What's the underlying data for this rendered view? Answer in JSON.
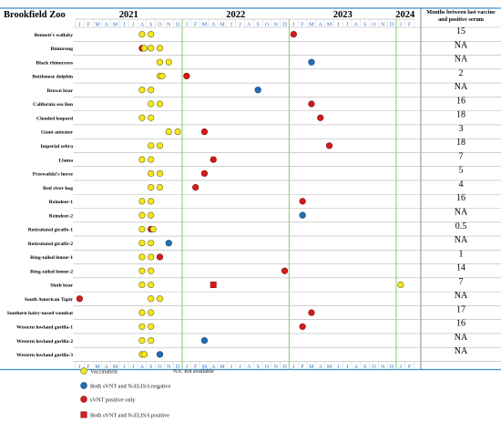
{
  "title": "Brookfield Zoo",
  "right_header": [
    "Months between last vaccine",
    "and positive serum"
  ],
  "na_note": "NA: not available",
  "years": [
    "2021",
    "2022",
    "2023",
    "2024"
  ],
  "month_letters": [
    "J",
    "F",
    "M",
    "A",
    "M",
    "J",
    "J",
    "A",
    "S",
    "O",
    "N",
    "D"
  ],
  "legend": [
    {
      "marker": "vaccination",
      "label": "Vaccination"
    },
    {
      "marker": "both_negative",
      "label": "Both sVNT and N-ELISA negative"
    },
    {
      "marker": "svnt_positive",
      "label": "sVNT positive only"
    },
    {
      "marker": "both_positive",
      "label": "Both sVNT and N-ELISA positive"
    }
  ],
  "colors": {
    "vaccination": "#f5e61e",
    "both_negative": "#1f6fb4",
    "svnt_positive": "#d7191c",
    "both_positive": "#d7191c",
    "frame": "#3b8fd0",
    "year_line": "#8fd17c"
  },
  "chart_data": {
    "type": "timeline",
    "title": "Brookfield Zoo",
    "x_range": [
      "2021-01",
      "2024-02"
    ],
    "rows": [
      {
        "animal": "Bennett's wallaby",
        "months_value": "15",
        "events": [
          {
            "t": "2021-08",
            "k": "vaccination"
          },
          {
            "t": "2021-09",
            "k": "vaccination"
          },
          {
            "t": "2023-01",
            "k": "svnt_positive"
          }
        ]
      },
      {
        "animal": "Binturong",
        "months_value": "NA",
        "events": [
          {
            "t": "2021-08",
            "k": "svnt_positive"
          },
          {
            "t": "2021-08",
            "k": "vaccination"
          },
          {
            "t": "2021-09",
            "k": "vaccination"
          },
          {
            "t": "2021-10",
            "k": "vaccination"
          }
        ]
      },
      {
        "animal": "Black rhinoceros",
        "months_value": "NA",
        "events": [
          {
            "t": "2021-10",
            "k": "vaccination"
          },
          {
            "t": "2021-11",
            "k": "vaccination"
          },
          {
            "t": "2023-03",
            "k": "both_negative"
          }
        ]
      },
      {
        "animal": "Bottlenose dolphin",
        "months_value": "2",
        "events": [
          {
            "t": "2021-10",
            "k": "vaccination"
          },
          {
            "t": "2021-10",
            "k": "vaccination"
          },
          {
            "t": "2022-01",
            "k": "svnt_positive"
          }
        ]
      },
      {
        "animal": "Brown bear",
        "months_value": "NA",
        "events": [
          {
            "t": "2021-08",
            "k": "vaccination"
          },
          {
            "t": "2021-09",
            "k": "vaccination"
          },
          {
            "t": "2022-09",
            "k": "both_negative"
          }
        ]
      },
      {
        "animal": "California sea lion",
        "months_value": "16",
        "events": [
          {
            "t": "2021-09",
            "k": "vaccination"
          },
          {
            "t": "2021-10",
            "k": "vaccination"
          },
          {
            "t": "2023-03",
            "k": "svnt_positive"
          }
        ]
      },
      {
        "animal": "Clouded leopard",
        "months_value": "18",
        "events": [
          {
            "t": "2021-08",
            "k": "vaccination"
          },
          {
            "t": "2021-09",
            "k": "vaccination"
          },
          {
            "t": "2023-04",
            "k": "svnt_positive"
          }
        ]
      },
      {
        "animal": "Giant anteater",
        "months_value": "3",
        "events": [
          {
            "t": "2021-11",
            "k": "vaccination"
          },
          {
            "t": "2021-12",
            "k": "vaccination"
          },
          {
            "t": "2022-03",
            "k": "svnt_positive"
          }
        ]
      },
      {
        "animal": "Imperial zebra",
        "months_value": "18",
        "events": [
          {
            "t": "2021-09",
            "k": "vaccination"
          },
          {
            "t": "2021-10",
            "k": "vaccination"
          },
          {
            "t": "2023-05",
            "k": "svnt_positive"
          }
        ]
      },
      {
        "animal": "Llama",
        "months_value": "7",
        "events": [
          {
            "t": "2021-08",
            "k": "vaccination"
          },
          {
            "t": "2021-09",
            "k": "vaccination"
          },
          {
            "t": "2022-04",
            "k": "svnt_positive"
          }
        ]
      },
      {
        "animal": "Przewalski's horse",
        "months_value": "5",
        "events": [
          {
            "t": "2021-09",
            "k": "vaccination"
          },
          {
            "t": "2021-10",
            "k": "vaccination"
          },
          {
            "t": "2022-03",
            "k": "svnt_positive"
          }
        ]
      },
      {
        "animal": "Red river hog",
        "months_value": "4",
        "events": [
          {
            "t": "2021-09",
            "k": "vaccination"
          },
          {
            "t": "2021-10",
            "k": "vaccination"
          },
          {
            "t": "2022-02",
            "k": "svnt_positive"
          }
        ]
      },
      {
        "animal": "Reindeer-1",
        "months_value": "16",
        "events": [
          {
            "t": "2021-08",
            "k": "vaccination"
          },
          {
            "t": "2021-09",
            "k": "vaccination"
          },
          {
            "t": "2023-02",
            "k": "svnt_positive"
          }
        ]
      },
      {
        "animal": "Reindeer-2",
        "months_value": "NA",
        "events": [
          {
            "t": "2021-08",
            "k": "vaccination"
          },
          {
            "t": "2021-09",
            "k": "vaccination"
          },
          {
            "t": "2023-02",
            "k": "both_negative"
          }
        ]
      },
      {
        "animal": "Reticulated giraffe-1",
        "months_value": "0.5",
        "events": [
          {
            "t": "2021-08",
            "k": "vaccination"
          },
          {
            "t": "2021-09",
            "k": "svnt_positive"
          },
          {
            "t": "2021-09",
            "k": "vaccination"
          }
        ]
      },
      {
        "animal": "Reticulated giraffe-2",
        "months_value": "NA",
        "events": [
          {
            "t": "2021-08",
            "k": "vaccination"
          },
          {
            "t": "2021-09",
            "k": "vaccination"
          },
          {
            "t": "2021-11",
            "k": "both_negative"
          }
        ]
      },
      {
        "animal": "Ring-tailed lemur-1",
        "months_value": "1",
        "events": [
          {
            "t": "2021-08",
            "k": "vaccination"
          },
          {
            "t": "2021-09",
            "k": "vaccination"
          },
          {
            "t": "2021-10",
            "k": "svnt_positive"
          }
        ]
      },
      {
        "animal": "Ring-tailed lemur-2",
        "months_value": "14",
        "events": [
          {
            "t": "2021-08",
            "k": "vaccination"
          },
          {
            "t": "2021-09",
            "k": "vaccination"
          },
          {
            "t": "2022-12",
            "k": "svnt_positive"
          }
        ]
      },
      {
        "animal": "Sloth bear",
        "months_value": "7",
        "events": [
          {
            "t": "2021-08",
            "k": "vaccination"
          },
          {
            "t": "2021-09",
            "k": "vaccination"
          },
          {
            "t": "2022-04",
            "k": "both_positive"
          },
          {
            "t": "2024-01",
            "k": "vaccination"
          }
        ]
      },
      {
        "animal": "South American Tapir",
        "months_value": "NA",
        "events": [
          {
            "t": "2021-01",
            "k": "svnt_positive"
          },
          {
            "t": "2021-09",
            "k": "vaccination"
          },
          {
            "t": "2021-10",
            "k": "vaccination"
          }
        ]
      },
      {
        "animal": "Southern hairy-nosed wombat",
        "months_value": "17",
        "events": [
          {
            "t": "2021-08",
            "k": "vaccination"
          },
          {
            "t": "2021-09",
            "k": "vaccination"
          },
          {
            "t": "2023-03",
            "k": "svnt_positive"
          }
        ]
      },
      {
        "animal": "Western lowland gorilla-1",
        "months_value": "16",
        "events": [
          {
            "t": "2021-08",
            "k": "vaccination"
          },
          {
            "t": "2021-09",
            "k": "vaccination"
          },
          {
            "t": "2023-02",
            "k": "svnt_positive"
          }
        ]
      },
      {
        "animal": "Western lowland gorilla-2",
        "months_value": "NA",
        "events": [
          {
            "t": "2021-08",
            "k": "vaccination"
          },
          {
            "t": "2021-09",
            "k": "vaccination"
          },
          {
            "t": "2022-03",
            "k": "both_negative"
          }
        ]
      },
      {
        "animal": "Western lowland gorilla-3",
        "months_value": "NA",
        "events": [
          {
            "t": "2021-08",
            "k": "vaccination"
          },
          {
            "t": "2021-08",
            "k": "vaccination"
          },
          {
            "t": "2021-10",
            "k": "both_negative"
          }
        ]
      }
    ]
  }
}
